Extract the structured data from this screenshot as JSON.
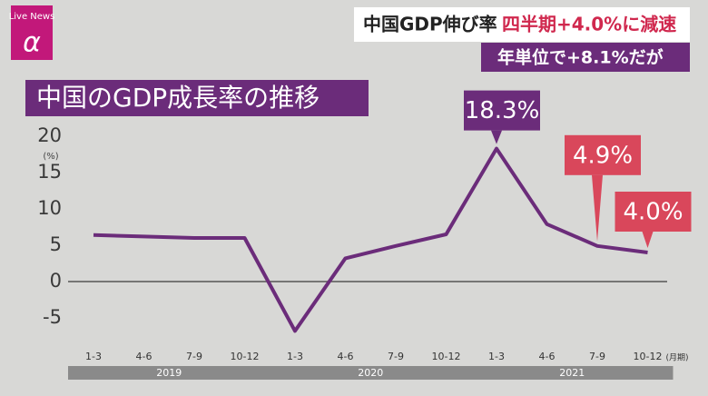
{
  "header": {
    "logo_top": "Live News",
    "logo_mark": "α",
    "headline": "中国GDP伸び率",
    "headline_accent": "四半期+4.0%に減速",
    "subline": "年単位で+8.1%だが"
  },
  "chart_data": {
    "type": "line",
    "title": "中国のGDP成長率の推移",
    "y_unit": "(%)",
    "x_unit": "(月期)",
    "categories": [
      "1-3",
      "4-6",
      "7-9",
      "10-12",
      "1-3",
      "4-6",
      "7-9",
      "10-12",
      "1-3",
      "4-6",
      "7-9",
      "10-12"
    ],
    "groups": [
      "2019",
      "2020",
      "2021"
    ],
    "series": [
      {
        "name": "GDP成長率",
        "color": "#6b2c7a",
        "values": [
          6.4,
          6.2,
          6.0,
          6.0,
          -6.8,
          3.2,
          4.9,
          6.5,
          18.3,
          7.9,
          4.9,
          4.0
        ],
        "value_labels": [
          null,
          null,
          null,
          null,
          null,
          null,
          null,
          null,
          "18.3%",
          null,
          "4.9%",
          "4.0%"
        ],
        "value_label_colors": [
          null,
          null,
          null,
          null,
          null,
          null,
          null,
          null,
          "#6b2c7a",
          null,
          "#d9475b",
          "#d9475b"
        ]
      }
    ],
    "ylim": [
      -7.5,
      20
    ],
    "yticks": [
      20,
      15,
      10,
      5,
      0,
      -5
    ],
    "zero_line": true
  }
}
